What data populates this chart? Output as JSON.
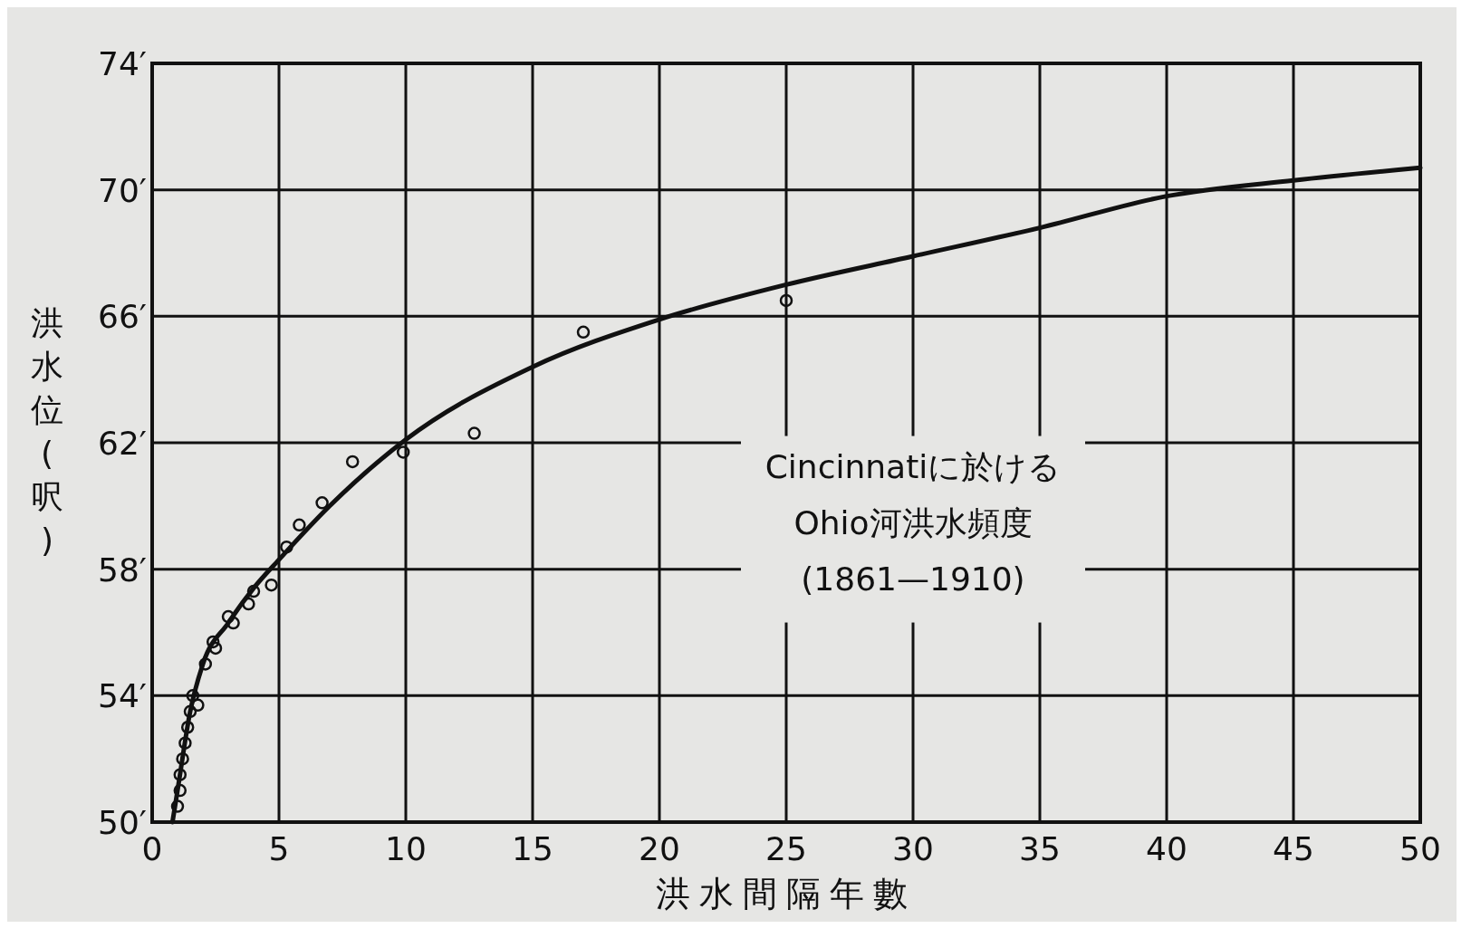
{
  "chart_data": {
    "type": "scatter",
    "xlabel": "洪水間隔年數",
    "ylabel": "洪水位(呎)",
    "xlim": [
      0,
      50
    ],
    "ylim": [
      50,
      74
    ],
    "xticks": [
      0,
      5,
      10,
      15,
      20,
      25,
      30,
      35,
      40,
      45,
      50
    ],
    "yticks": [
      {
        "value": 50,
        "label": "50′"
      },
      {
        "value": 54,
        "label": "54′"
      },
      {
        "value": 58,
        "label": "58′"
      },
      {
        "value": 62,
        "label": "62′"
      },
      {
        "value": 66,
        "label": "66′"
      },
      {
        "value": 70,
        "label": "70′"
      },
      {
        "value": 74,
        "label": "74′"
      }
    ],
    "grid": true,
    "series": [
      {
        "type": "scatter",
        "color": "#111111",
        "marker": "circle",
        "x": [
          1.0,
          1.1,
          1.1,
          1.2,
          1.3,
          1.4,
          1.5,
          1.6,
          1.8,
          2.1,
          2.4,
          2.5,
          3.0,
          3.2,
          3.8,
          4.0,
          4.7,
          5.3,
          5.8,
          6.7,
          7.9,
          9.9,
          12.7,
          17.0,
          25.0
        ],
        "values": [
          50.5,
          51.0,
          51.5,
          52.0,
          52.5,
          53.0,
          53.5,
          54.0,
          53.7,
          55.0,
          55.7,
          55.5,
          56.5,
          56.3,
          56.9,
          57.3,
          57.5,
          58.7,
          59.4,
          60.1,
          61.4,
          61.7,
          62.3,
          65.5,
          66.5
        ]
      },
      {
        "type": "line",
        "color": "#111111",
        "marker": "none",
        "line_style": "solid",
        "x": [
          0.8,
          1,
          1.5,
          2,
          3,
          4,
          5,
          7,
          10,
          15,
          20,
          25,
          30,
          35,
          40,
          45,
          50
        ],
        "values": [
          50,
          51,
          53.5,
          55,
          56.3,
          57.4,
          58.3,
          60,
          62.1,
          64.4,
          65.9,
          67,
          67.9,
          68.8,
          69.8,
          70.3,
          70.7
        ]
      }
    ],
    "annotations": [
      "Cincinnatiに於ける\nOhio河洪水頻度\n(1861—1910)"
    ]
  }
}
